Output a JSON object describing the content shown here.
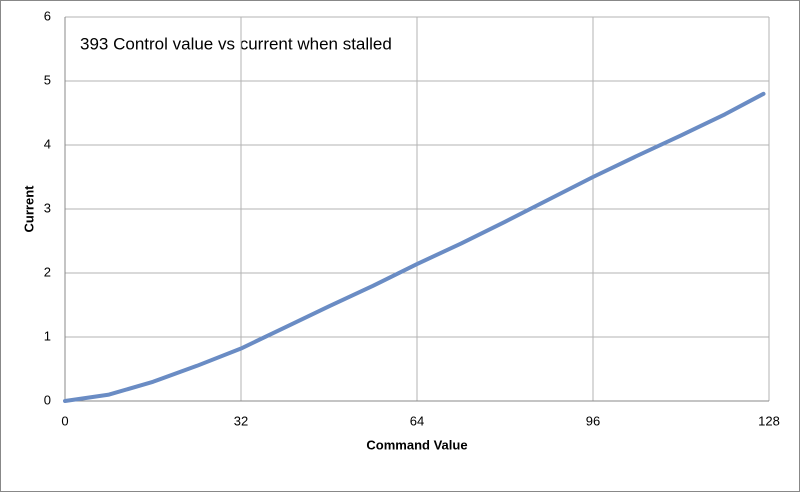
{
  "chart_data": {
    "type": "line",
    "title": "393 Control value vs current when stalled",
    "x_label": "Command Value",
    "y_label": "Current",
    "x": [
      0,
      8,
      16,
      24,
      32,
      40,
      48,
      56,
      64,
      72,
      80,
      88,
      96,
      104,
      112,
      120,
      127
    ],
    "series": [
      {
        "name": "Current",
        "color": "#6a8cc4",
        "values": [
          0,
          0.1,
          0.3,
          0.55,
          0.82,
          1.15,
          1.48,
          1.8,
          2.14,
          2.46,
          2.8,
          3.15,
          3.5,
          3.83,
          4.15,
          4.48,
          4.8
        ]
      }
    ],
    "xlim": [
      0,
      128
    ],
    "xticks": [
      0,
      32,
      64,
      96,
      128
    ],
    "ylim": [
      0,
      6
    ],
    "yticks": [
      0,
      1,
      2,
      3,
      4,
      5,
      6
    ],
    "grid": true
  }
}
